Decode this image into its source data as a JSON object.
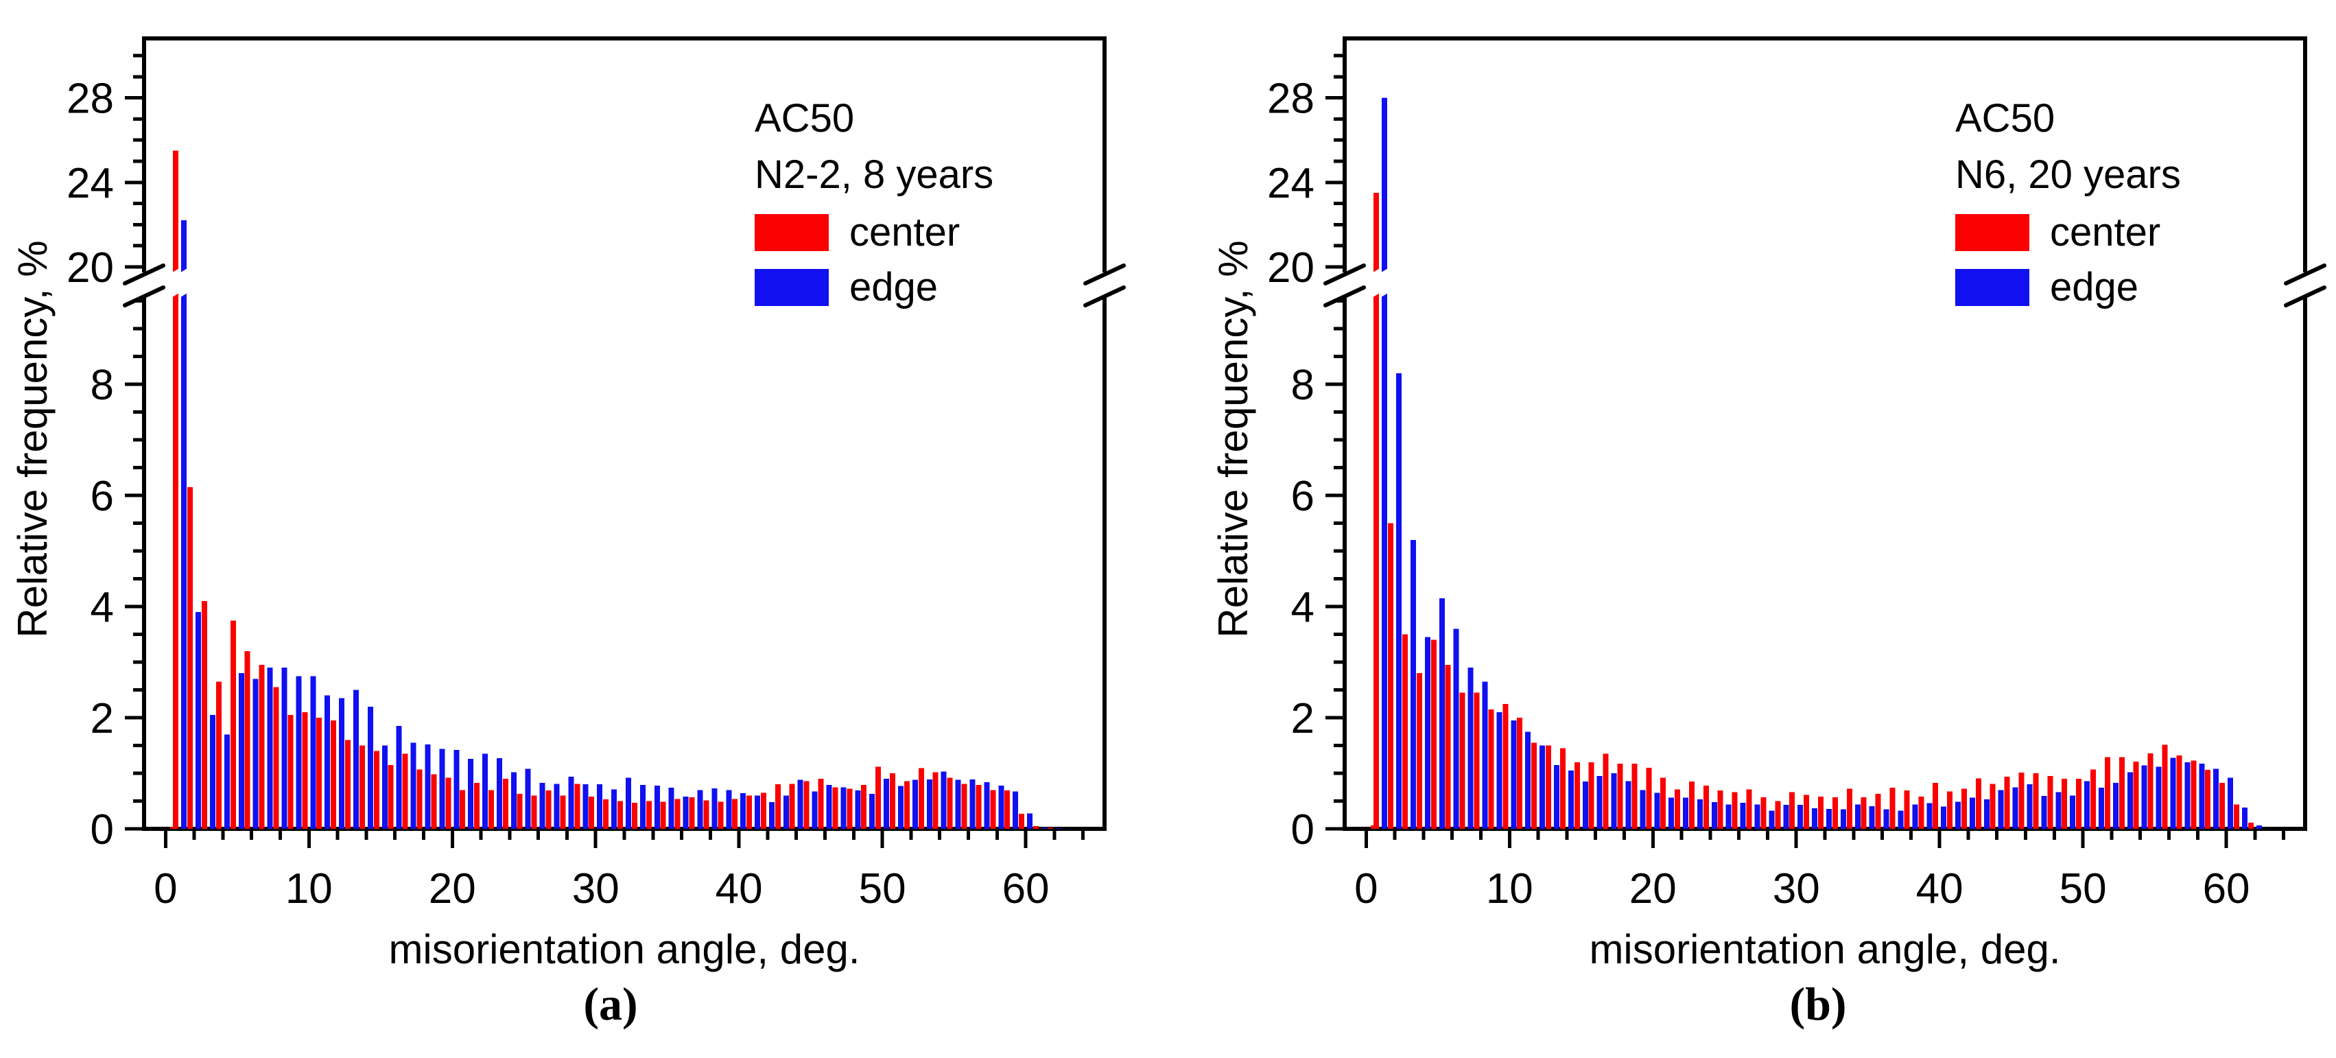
{
  "colors": {
    "center": "#fb0000",
    "edge": "#1010f0",
    "axis": "#000000",
    "background": "#ffffff"
  },
  "captions": {
    "a": "(a)",
    "b": "(b)"
  },
  "chart_data": [
    {
      "type": "bar",
      "panel": "a",
      "title_lines": [
        "AC50",
        "N2-2, 8 years"
      ],
      "legend": [
        {
          "label": "center",
          "color_key": "center"
        },
        {
          "label": "edge",
          "color_key": "edge"
        }
      ],
      "xlabel": "misorientation angle, deg.",
      "ylabel": "Relative frequency, %",
      "x_ticks": [
        0,
        10,
        20,
        30,
        40,
        50,
        60
      ],
      "x_minor_step": 2,
      "x_range": [
        -1.5,
        65.5
      ],
      "y_axis_break": {
        "lower_range": [
          0,
          9.75
        ],
        "upper_range": [
          20,
          30.8
        ],
        "break_label_value": 20
      },
      "y_lower_ticks": [
        0,
        2,
        4,
        6,
        8
      ],
      "y_lower_minor_step": 0.5,
      "y_upper_ticks": [
        20,
        24,
        28
      ],
      "y_upper_minor_step": 1,
      "x_start": 1,
      "x_step": 1,
      "near_zero_stub": {
        "x": 0.5,
        "value": 0.03,
        "series": "center"
      },
      "series": [
        {
          "name": "center",
          "values": [
            25.5,
            6.15,
            4.1,
            2.65,
            3.75,
            3.2,
            2.95,
            2.55,
            2.05,
            2.1,
            2.0,
            1.95,
            1.6,
            1.5,
            1.4,
            1.15,
            1.35,
            1.07,
            0.98,
            0.92,
            0.7,
            0.83,
            0.7,
            0.9,
            0.63,
            0.6,
            0.69,
            0.6,
            0.81,
            0.58,
            0.53,
            0.5,
            0.47,
            0.5,
            0.49,
            0.54,
            0.57,
            0.51,
            0.49,
            0.54,
            0.6,
            0.65,
            0.8,
            0.81,
            0.86,
            0.9,
            0.75,
            0.72,
            0.79,
            1.12,
            1.0,
            0.86,
            1.09,
            1.02,
            0.92,
            0.81,
            0.79,
            0.7,
            0.69,
            0.27,
            0.05,
            0.02
          ]
        },
        {
          "name": "edge",
          "values": [
            22.2,
            3.9,
            2.05,
            1.7,
            2.8,
            2.7,
            2.9,
            2.9,
            2.75,
            2.75,
            2.4,
            2.35,
            2.5,
            2.2,
            1.5,
            1.85,
            1.55,
            1.52,
            1.44,
            1.42,
            1.26,
            1.35,
            1.27,
            1.02,
            1.08,
            0.83,
            0.81,
            0.94,
            0.8,
            0.8,
            0.71,
            0.92,
            0.79,
            0.78,
            0.74,
            0.58,
            0.7,
            0.73,
            0.7,
            0.64,
            0.6,
            0.48,
            0.6,
            0.88,
            0.67,
            0.79,
            0.75,
            0.69,
            0.63,
            0.9,
            0.77,
            0.88,
            0.89,
            1.03,
            0.88,
            0.89,
            0.84,
            0.78,
            0.67,
            0.28,
            0.02,
            0.01
          ]
        }
      ]
    },
    {
      "type": "bar",
      "panel": "b",
      "title_lines": [
        "AC50",
        "N6, 20 years"
      ],
      "legend": [
        {
          "label": "center",
          "color_key": "center"
        },
        {
          "label": "edge",
          "color_key": "edge"
        }
      ],
      "xlabel": "misorientation angle, deg.",
      "ylabel": "Relative frequency, %",
      "x_ticks": [
        0,
        10,
        20,
        30,
        40,
        50,
        60
      ],
      "x_minor_step": 2,
      "x_range": [
        -1.5,
        65.5
      ],
      "y_axis_break": {
        "lower_range": [
          0,
          9.75
        ],
        "upper_range": [
          20,
          30.8
        ],
        "break_label_value": 20
      },
      "y_lower_ticks": [
        0,
        2,
        4,
        6,
        8
      ],
      "y_lower_minor_step": 0.5,
      "y_upper_ticks": [
        20,
        24,
        28
      ],
      "y_upper_minor_step": 1,
      "x_start": 1,
      "x_step": 1,
      "near_zero_stub": {
        "x": 0.5,
        "value": 0.06,
        "series": "center"
      },
      "series": [
        {
          "name": "center",
          "values": [
            23.5,
            5.5,
            3.5,
            2.8,
            3.4,
            2.95,
            2.45,
            2.45,
            2.15,
            2.25,
            2.0,
            1.55,
            1.5,
            1.45,
            1.2,
            1.2,
            1.35,
            1.17,
            1.17,
            1.1,
            0.92,
            0.71,
            0.85,
            0.78,
            0.69,
            0.66,
            0.71,
            0.57,
            0.5,
            0.66,
            0.61,
            0.58,
            0.57,
            0.72,
            0.57,
            0.63,
            0.74,
            0.69,
            0.58,
            0.83,
            0.67,
            0.72,
            0.91,
            0.81,
            0.94,
            1.01,
            1.0,
            0.95,
            0.9,
            0.9,
            1.07,
            1.29,
            1.29,
            1.21,
            1.36,
            1.51,
            1.32,
            1.23,
            1.06,
            0.83,
            0.44,
            0.11
          ]
        },
        {
          "name": "edge",
          "values": [
            28.0,
            8.2,
            5.2,
            3.45,
            4.15,
            3.6,
            2.9,
            2.65,
            2.1,
            1.95,
            1.75,
            1.5,
            1.15,
            1.05,
            0.85,
            0.95,
            1.0,
            0.86,
            0.7,
            0.65,
            0.56,
            0.56,
            0.53,
            0.48,
            0.44,
            0.47,
            0.44,
            0.33,
            0.43,
            0.43,
            0.37,
            0.36,
            0.35,
            0.44,
            0.41,
            0.35,
            0.33,
            0.44,
            0.46,
            0.4,
            0.49,
            0.56,
            0.53,
            0.7,
            0.75,
            0.8,
            0.59,
            0.66,
            0.6,
            0.86,
            0.74,
            0.83,
            1.02,
            1.14,
            1.12,
            1.28,
            1.2,
            1.17,
            1.08,
            0.92,
            0.38,
            0.06
          ]
        }
      ]
    }
  ]
}
